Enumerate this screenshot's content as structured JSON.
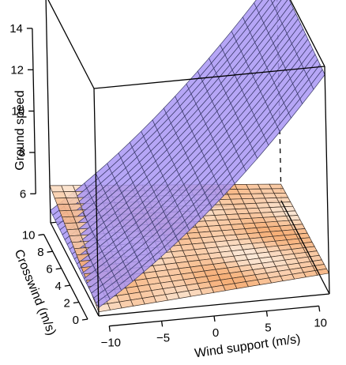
{
  "chart_data": {
    "type": "surface3d",
    "zlabel": "Ground speed",
    "xlabel": "Wind support (m/s)",
    "ylabel": "Crosswind (m/s)",
    "xticks": [
      -10,
      -5,
      0,
      5,
      10
    ],
    "yticks": [
      0,
      2,
      4,
      6,
      8,
      10
    ],
    "zticks": [
      6,
      8,
      10,
      12,
      14
    ],
    "xlim": [
      -11,
      11
    ],
    "ylim": [
      0,
      11
    ],
    "zlim": [
      4.6,
      15.6
    ],
    "grid_n": 20,
    "surfaces": [
      {
        "description": "rising surface",
        "color": "#a996f4",
        "mesh_color": "#3a3a6a",
        "z_at_corners": {
          "x_min_y_min": 5.0,
          "x_max_y_min": 15.2,
          "x_min_y_max": 5.2,
          "x_max_y_max": 15.6
        }
      },
      {
        "description": "flat surface",
        "colors": [
          "#fbe5d2",
          "#f5a668"
        ],
        "mesh_color": "#3c2e24",
        "z_at_corners": {
          "x_min_y_min": 4.8,
          "x_max_y_min": 5.6,
          "x_min_y_max": 6.4,
          "x_max_y_max": 5.4
        }
      }
    ]
  }
}
